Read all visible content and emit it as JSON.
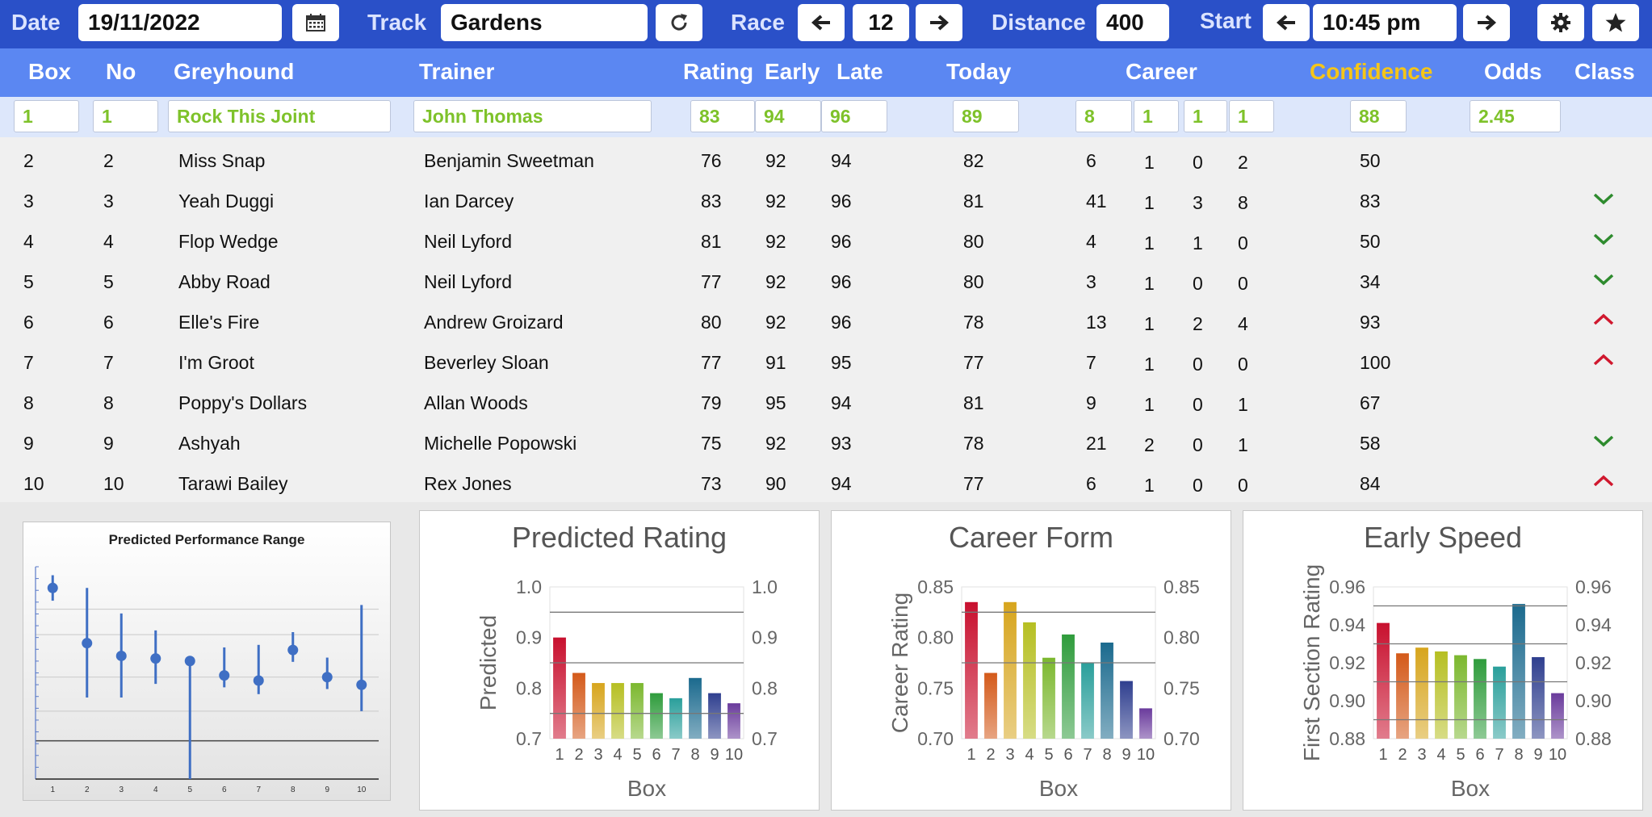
{
  "toolbar": {
    "date_label": "Date",
    "date_value": "19/11/2022",
    "track_label": "Track",
    "track_value": "Gardens",
    "race_label": "Race",
    "race_value": "12",
    "distance_label": "Distance",
    "distance_value": "400",
    "start_label": "Start",
    "start_value": "10:45 pm",
    "icons": [
      "calendar-icon",
      "refresh-icon",
      "arrow-left-icon",
      "arrow-right-icon",
      "gear-icon",
      "star-icon"
    ]
  },
  "table": {
    "headers": {
      "box": "Box",
      "no": "No",
      "greyhound": "Greyhound",
      "trainer": "Trainer",
      "rating": "Rating",
      "early": "Early",
      "late": "Late",
      "today": "Today",
      "career": "Career",
      "confidence": "Confidence",
      "odds": "Odds",
      "class": "Class"
    },
    "selected": {
      "box": "1",
      "no": "1",
      "greyhound": "Rock This Joint",
      "trainer": "John Thomas",
      "rating": "83",
      "early": "94",
      "late": "96",
      "today": "89",
      "career": [
        "8",
        "1",
        "1",
        "1"
      ],
      "confidence": "88",
      "odds": "2.45"
    },
    "rows": [
      {
        "box": "2",
        "no": "2",
        "greyhound": "Miss Snap",
        "trainer": "Benjamin Sweetman",
        "rating": "76",
        "early": "92",
        "late": "94",
        "today": "82",
        "career": [
          "6",
          "1",
          "0",
          "2"
        ],
        "confidence": "50",
        "class": ""
      },
      {
        "box": "3",
        "no": "3",
        "greyhound": "Yeah Duggi",
        "trainer": "Ian Darcey",
        "rating": "83",
        "early": "92",
        "late": "96",
        "today": "81",
        "career": [
          "41",
          "1",
          "3",
          "8"
        ],
        "confidence": "83",
        "class": "down"
      },
      {
        "box": "4",
        "no": "4",
        "greyhound": "Flop Wedge",
        "trainer": "Neil Lyford",
        "rating": "81",
        "early": "92",
        "late": "96",
        "today": "80",
        "career": [
          "4",
          "1",
          "1",
          "0"
        ],
        "confidence": "50",
        "class": "down"
      },
      {
        "box": "5",
        "no": "5",
        "greyhound": "Abby Road",
        "trainer": "Neil Lyford",
        "rating": "77",
        "early": "92",
        "late": "96",
        "today": "80",
        "career": [
          "3",
          "1",
          "0",
          "0"
        ],
        "confidence": "34",
        "class": "down"
      },
      {
        "box": "6",
        "no": "6",
        "greyhound": "Elle's Fire",
        "trainer": "Andrew Groizard",
        "rating": "80",
        "early": "92",
        "late": "96",
        "today": "78",
        "career": [
          "13",
          "1",
          "2",
          "4"
        ],
        "confidence": "93",
        "class": "up"
      },
      {
        "box": "7",
        "no": "7",
        "greyhound": "I'm Groot",
        "trainer": "Beverley Sloan",
        "rating": "77",
        "early": "91",
        "late": "95",
        "today": "77",
        "career": [
          "7",
          "1",
          "0",
          "0"
        ],
        "confidence": "100",
        "class": "up"
      },
      {
        "box": "8",
        "no": "8",
        "greyhound": "Poppy's Dollars",
        "trainer": "Allan Woods",
        "rating": "79",
        "early": "95",
        "late": "94",
        "today": "81",
        "career": [
          "9",
          "1",
          "0",
          "1"
        ],
        "confidence": "67",
        "class": ""
      },
      {
        "box": "9",
        "no": "9",
        "greyhound": "Ashyah",
        "trainer": "Michelle Popowski",
        "rating": "75",
        "early": "92",
        "late": "93",
        "today": "78",
        "career": [
          "21",
          "2",
          "0",
          "1"
        ],
        "confidence": "58",
        "class": "down"
      },
      {
        "box": "10",
        "no": "10",
        "greyhound": "Tarawi Bailey",
        "trainer": "Rex Jones",
        "rating": "73",
        "early": "90",
        "late": "94",
        "today": "77",
        "career": [
          "6",
          "1",
          "0",
          "0"
        ],
        "confidence": "84",
        "class": "up"
      }
    ]
  },
  "colors": {
    "toolbar": "#2a50c8",
    "header": "#5b87f2",
    "confidence_header": "#f5c518",
    "selected_text": "#7ec22a",
    "class_down": "#2e8b2e",
    "class_up": "#d0182e",
    "range_marker": "#3f6fc4"
  },
  "chart_data": [
    {
      "type": "scatter",
      "title": "Predicted Performance Range",
      "categories": [
        "1",
        "2",
        "3",
        "4",
        "5",
        "6",
        "7",
        "8",
        "9",
        "10"
      ],
      "series": [
        {
          "values": [
            0.905,
            0.84,
            0.825,
            0.822,
            0.819,
            0.802,
            0.796,
            0.832,
            0.8,
            0.791
          ]
        },
        {
          "values": [
            0.92,
            0.905,
            0.875,
            0.855,
            0.818,
            0.835,
            0.838,
            0.853,
            0.823,
            0.885
          ]
        },
        {
          "values": [
            0.89,
            0.776,
            0.776,
            0.792,
            0.68,
            0.788,
            0.78,
            0.818,
            0.786,
            0.76
          ]
        }
      ],
      "ylim": [
        0.68,
        0.93
      ],
      "grid": true,
      "reference_line": 0.725
    },
    {
      "type": "bar",
      "title": "Predicted Rating",
      "xlabel": "Box",
      "ylabel": "Predicted",
      "categories": [
        "1",
        "2",
        "3",
        "4",
        "5",
        "6",
        "7",
        "8",
        "9",
        "10"
      ],
      "values": [
        0.9,
        0.83,
        0.81,
        0.81,
        0.81,
        0.79,
        0.78,
        0.82,
        0.79,
        0.77
      ],
      "ylim": [
        0.7,
        1.0
      ],
      "yticks": [
        "0.7",
        "0.8",
        "0.9",
        "1.0"
      ],
      "ref_lines": [
        0.95,
        0.85,
        0.75
      ]
    },
    {
      "type": "bar",
      "title": "Career Form",
      "xlabel": "Box",
      "ylabel": "Career Rating",
      "categories": [
        "1",
        "2",
        "3",
        "4",
        "5",
        "6",
        "7",
        "8",
        "9",
        "10"
      ],
      "values": [
        0.835,
        0.765,
        0.835,
        0.815,
        0.78,
        0.803,
        0.775,
        0.795,
        0.757,
        0.73
      ],
      "ylim": [
        0.7,
        0.85
      ],
      "yticks": [
        "0.70",
        "0.75",
        "0.80",
        "0.85"
      ],
      "ref_lines": [
        0.825,
        0.775
      ]
    },
    {
      "type": "bar",
      "title": "Early Speed",
      "xlabel": "Box",
      "ylabel": "First Section Rating",
      "categories": [
        "1",
        "2",
        "3",
        "4",
        "5",
        "6",
        "7",
        "8",
        "9",
        "10"
      ],
      "values": [
        0.941,
        0.925,
        0.928,
        0.926,
        0.924,
        0.922,
        0.918,
        0.951,
        0.923,
        0.904
      ],
      "ylim": [
        0.88,
        0.96
      ],
      "yticks": [
        "0.88",
        "0.90",
        "0.92",
        "0.94",
        "0.96"
      ],
      "ref_lines": [
        0.95,
        0.93,
        0.91,
        0.89
      ]
    }
  ]
}
